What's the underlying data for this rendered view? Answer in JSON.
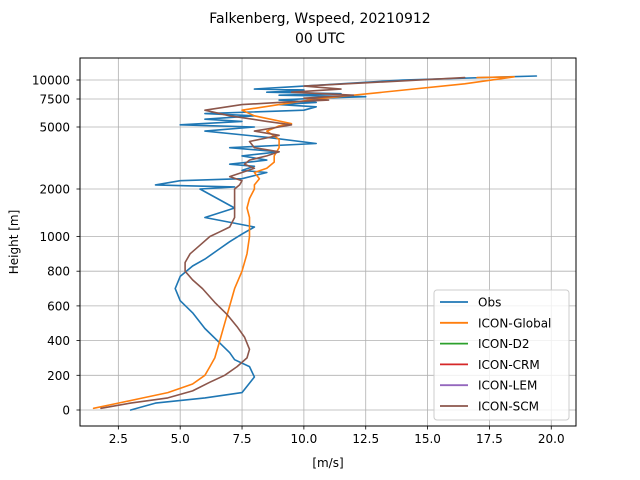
{
  "chart_data": {
    "type": "line",
    "title_line1": "Falkenberg, Wspeed, 20210912",
    "title_line2": "00 UTC",
    "xlabel": "[m/s]",
    "ylabel": "Height [m]",
    "xlim": [
      0.95,
      21.0
    ],
    "x_ticks": [
      2.5,
      5.0,
      7.5,
      10.0,
      12.5,
      15.0,
      17.5,
      20.0
    ],
    "x_tick_labels": [
      "2.5",
      "5.0",
      "7.5",
      "10.0",
      "12.5",
      "15.0",
      "17.5",
      "20.0"
    ],
    "y_ticks": [
      0,
      200,
      400,
      600,
      800,
      1000,
      2000,
      5000,
      7500,
      10000
    ],
    "y_tick_labels": [
      "0",
      "200",
      "400",
      "600",
      "800",
      "1000",
      "2000",
      "5000",
      "7500",
      "10000"
    ],
    "grid": true,
    "legend_position": "lower right",
    "series": [
      {
        "name": "Obs",
        "color": "#1f77b4",
        "x": [
          3.0,
          4.0,
          6.0,
          7.5,
          8.0,
          7.8,
          7.2,
          7.0,
          6.5,
          6.0,
          5.5,
          5.0,
          4.8,
          5.0,
          5.5,
          6.0,
          6.5,
          7.0,
          7.5,
          8.0,
          6.0,
          7.2,
          6.5,
          5.8,
          6.5,
          7.2,
          5.5,
          4.0,
          5.0,
          7.5,
          8.5,
          7.5,
          8.0,
          7.0,
          8.5,
          7.5,
          9.0,
          7.0,
          10.5,
          8.5,
          6.0,
          8.0,
          5.0,
          7.5,
          6.0,
          8.0,
          6.0,
          10.0,
          10.5,
          9.0,
          10.5,
          9.0,
          10.5,
          12.5,
          9.0,
          11.5,
          8.5,
          10.0,
          10.0,
          8.0,
          9.0,
          14.0,
          19.4
        ],
        "y": [
          0,
          40,
          70,
          100,
          190,
          250,
          290,
          330,
          400,
          470,
          560,
          630,
          700,
          770,
          830,
          870,
          920,
          970,
          1050,
          1200,
          1400,
          1600,
          1800,
          2000,
          2050,
          2100,
          2150,
          2200,
          2400,
          2500,
          2800,
          2900,
          3100,
          3200,
          3400,
          3600,
          3800,
          4000,
          4200,
          4500,
          4800,
          5000,
          5200,
          5500,
          5700,
          6000,
          6200,
          6500,
          6800,
          7000,
          7200,
          7400,
          7600,
          7800,
          8000,
          8200,
          8400,
          8600,
          8700,
          8800,
          9000,
          10000,
          10500
        ]
      },
      {
        "name": "ICON-Global",
        "color": "#ff7f0e",
        "x": [
          1.5,
          2.5,
          3.5,
          4.5,
          5.5,
          6.0,
          6.2,
          6.4,
          6.6,
          6.8,
          7.0,
          7.2,
          7.5,
          7.7,
          7.8,
          7.8,
          7.8,
          7.7,
          7.8,
          8.0,
          8.0,
          8.2,
          8.0,
          8.5,
          8.8,
          8.8,
          9.0,
          9.0,
          8.5,
          9.0,
          9.5,
          8.0,
          7.5,
          9.0,
          10.5,
          12.0,
          16.5,
          18.5,
          17.0
        ],
        "y": [
          10,
          40,
          70,
          100,
          150,
          200,
          250,
          300,
          400,
          500,
          600,
          700,
          800,
          900,
          1000,
          1200,
          1400,
          1600,
          1800,
          2000,
          2200,
          2500,
          2800,
          3000,
          3300,
          3600,
          4000,
          4400,
          4800,
          5100,
          5300,
          6000,
          6500,
          7000,
          7500,
          8000,
          9500,
          10400,
          10300
        ]
      },
      {
        "name": "ICON-D2",
        "color": "#2ca02c",
        "x": [],
        "y": []
      },
      {
        "name": "ICON-CRM",
        "color": "#d62728",
        "x": [],
        "y": []
      },
      {
        "name": "ICON-LEM",
        "color": "#9467bd",
        "x": [],
        "y": []
      },
      {
        "name": "ICON-SCM",
        "color": "#8c564b",
        "x": [
          1.8,
          3.0,
          4.5,
          5.5,
          6.2,
          6.8,
          7.3,
          7.7,
          7.8,
          7.6,
          7.3,
          6.9,
          6.4,
          5.9,
          5.5,
          5.2,
          5.2,
          5.4,
          5.8,
          6.2,
          6.6,
          7.0,
          7.2,
          7.2,
          7.2,
          7.4,
          7.5,
          7.0,
          7.5,
          8.0,
          7.6,
          7.8,
          8.5,
          9.0,
          8.0,
          7.8,
          9.0,
          8.0,
          9.0,
          9.5,
          8.5,
          7.0,
          6.0,
          7.5,
          9.0,
          11.0,
          10.0,
          12.0,
          9.5,
          11.5,
          10.0,
          16.5
        ],
        "y": [
          10,
          40,
          70,
          110,
          160,
          200,
          250,
          300,
          350,
          420,
          480,
          550,
          620,
          700,
          750,
          800,
          850,
          900,
          950,
          1000,
          1100,
          1200,
          1400,
          1700,
          2000,
          2200,
          2400,
          2600,
          2800,
          3000,
          3200,
          3400,
          3600,
          3800,
          4000,
          4300,
          4600,
          4800,
          5000,
          5200,
          5500,
          6000,
          6500,
          7000,
          7200,
          7400,
          7600,
          8000,
          8400,
          8800,
          9200,
          10300
        ]
      }
    ]
  }
}
